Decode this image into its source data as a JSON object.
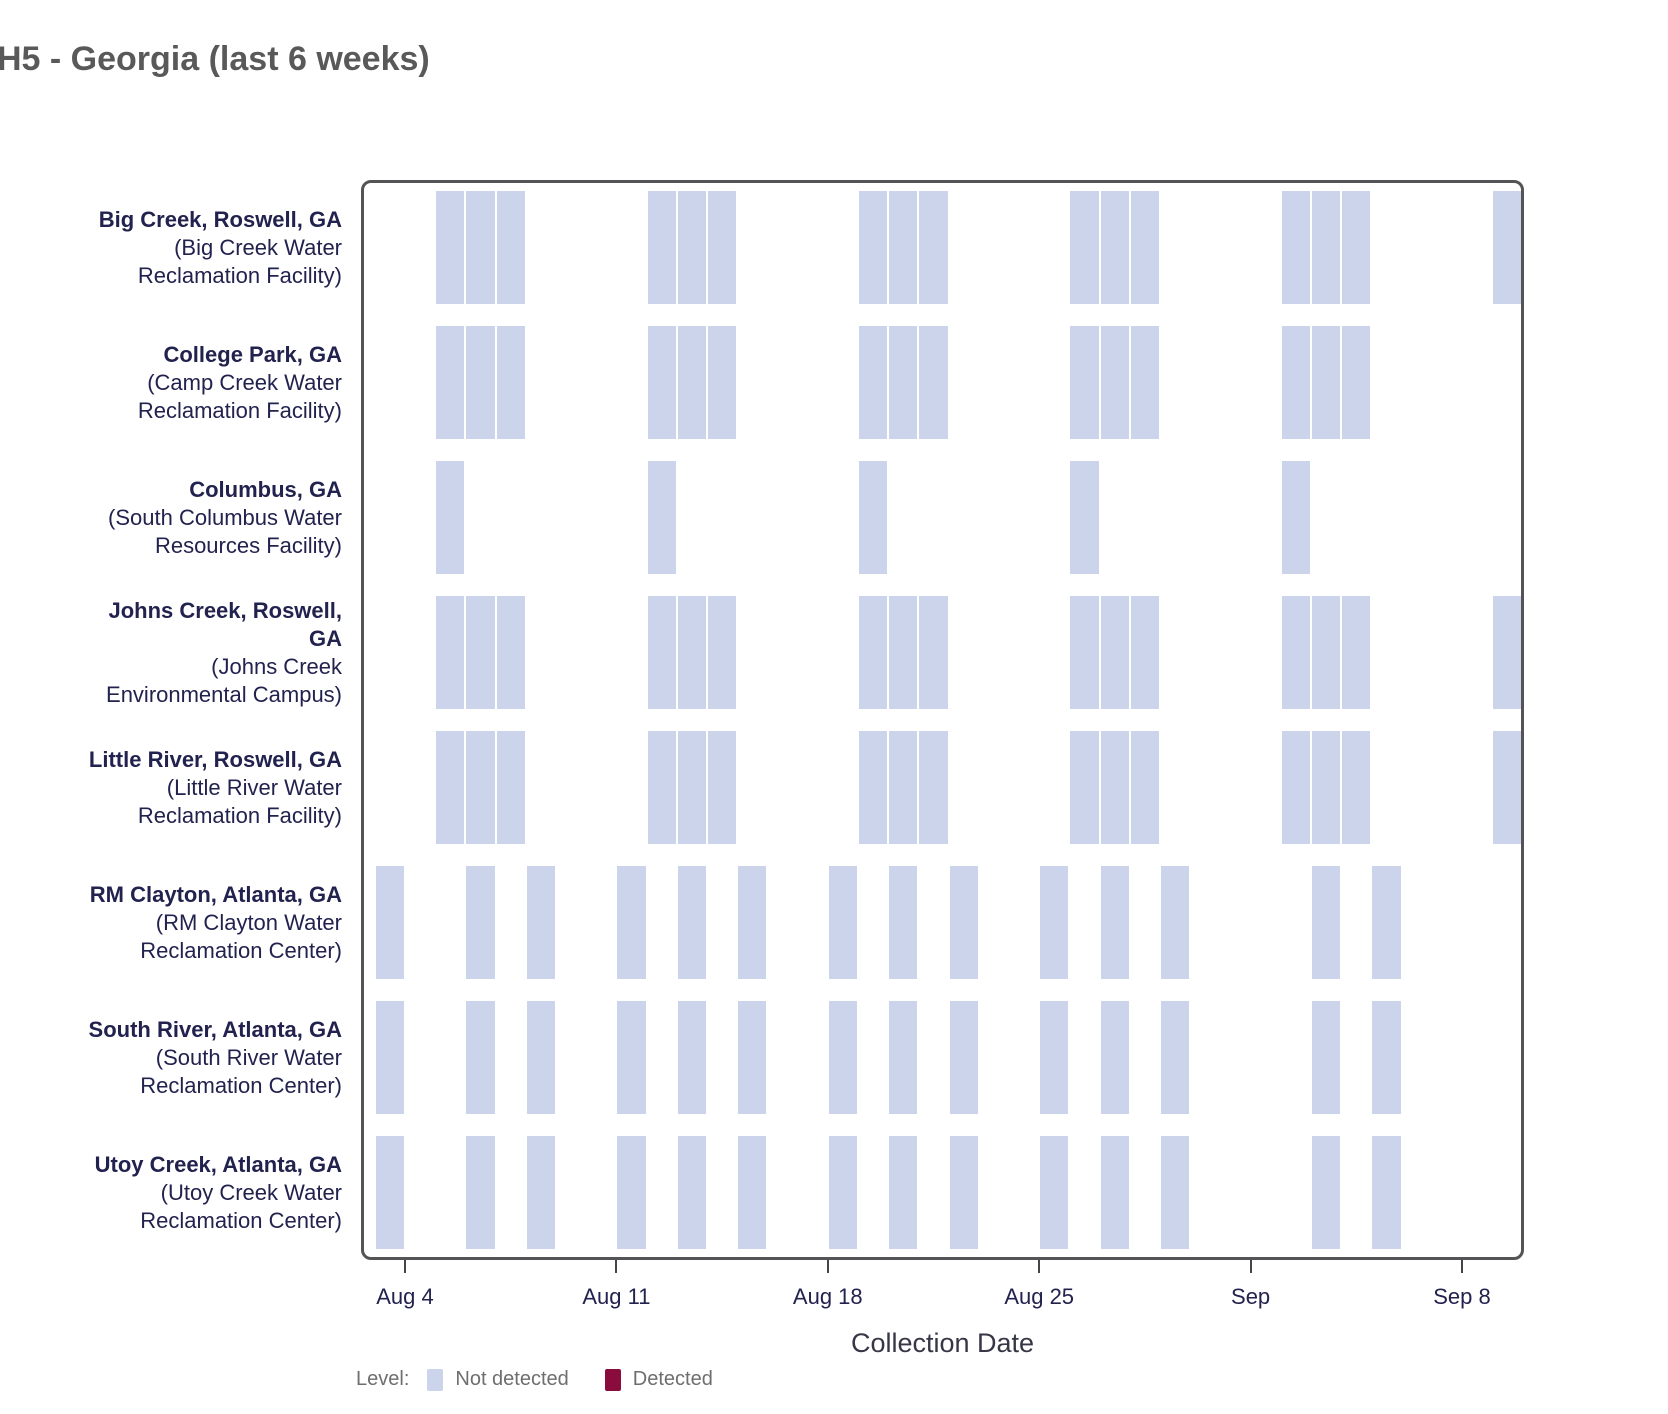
{
  "title": "H5 - Georgia (last 6 weeks)",
  "x_axis": {
    "title": "Collection Date",
    "ticks": [
      {
        "label": "Aug 4",
        "day": 3
      },
      {
        "label": "Aug 11",
        "day": 10
      },
      {
        "label": "Aug 18",
        "day": 17
      },
      {
        "label": "Aug 25",
        "day": 24
      },
      {
        "label": "Sep",
        "day": 31
      },
      {
        "label": "Sep 8",
        "day": 38
      }
    ],
    "range_note": "axis spans approx Aug 2 to Sep 10; day offsets counted from Aug 1 = 0"
  },
  "legend": {
    "label": "Level:",
    "items": [
      {
        "label": "Not detected",
        "color": "#ccd4ec"
      },
      {
        "label": "Detected",
        "color": "#8a0c3c"
      }
    ]
  },
  "chart_data": {
    "type": "heatmap",
    "title": "H5 - Georgia (last 6 weeks)",
    "xlabel": "Collection Date",
    "x_unit": "collection date (day offset from Aug 1)",
    "levels": [
      "Not detected",
      "Detected"
    ],
    "grid": false,
    "legend_position": "bottom-left",
    "rows": [
      {
        "site": "Big Creek, Roswell, GA",
        "facility": "(Big Creek Water\nReclamation Facility)",
        "level": "Not detected",
        "dates": [
          {
            "label": "Aug 5",
            "day": 4
          },
          {
            "label": "Aug 6",
            "day": 5
          },
          {
            "label": "Aug 7",
            "day": 6
          },
          {
            "label": "Aug 12",
            "day": 11
          },
          {
            "label": "Aug 13",
            "day": 12
          },
          {
            "label": "Aug 14",
            "day": 13
          },
          {
            "label": "Aug 19",
            "day": 18
          },
          {
            "label": "Aug 20",
            "day": 19
          },
          {
            "label": "Aug 21",
            "day": 20
          },
          {
            "label": "Aug 26",
            "day": 25
          },
          {
            "label": "Aug 27",
            "day": 26
          },
          {
            "label": "Aug 28",
            "day": 27
          },
          {
            "label": "Sep 2",
            "day": 32
          },
          {
            "label": "Sep 3",
            "day": 33
          },
          {
            "label": "Sep 4",
            "day": 34
          },
          {
            "label": "Sep 9",
            "day": 39
          }
        ]
      },
      {
        "site": "College Park, GA",
        "facility": "(Camp Creek Water\nReclamation Facility)",
        "level": "Not detected",
        "dates": [
          {
            "label": "Aug 5",
            "day": 4
          },
          {
            "label": "Aug 6",
            "day": 5
          },
          {
            "label": "Aug 7",
            "day": 6
          },
          {
            "label": "Aug 12",
            "day": 11
          },
          {
            "label": "Aug 13",
            "day": 12
          },
          {
            "label": "Aug 14",
            "day": 13
          },
          {
            "label": "Aug 19",
            "day": 18
          },
          {
            "label": "Aug 20",
            "day": 19
          },
          {
            "label": "Aug 21",
            "day": 20
          },
          {
            "label": "Aug 26",
            "day": 25
          },
          {
            "label": "Aug 27",
            "day": 26
          },
          {
            "label": "Aug 28",
            "day": 27
          },
          {
            "label": "Sep 2",
            "day": 32
          },
          {
            "label": "Sep 3",
            "day": 33
          },
          {
            "label": "Sep 4",
            "day": 34
          }
        ]
      },
      {
        "site": "Columbus, GA",
        "facility": "(South Columbus Water\nResources Facility)",
        "level": "Not detected",
        "dates": [
          {
            "label": "Aug 5",
            "day": 4
          },
          {
            "label": "Aug 12",
            "day": 11
          },
          {
            "label": "Aug 19",
            "day": 18
          },
          {
            "label": "Aug 26",
            "day": 25
          },
          {
            "label": "Sep 2",
            "day": 32
          }
        ]
      },
      {
        "site": "Johns Creek, Roswell,\nGA",
        "facility": "(Johns Creek\nEnvironmental Campus)",
        "level": "Not detected",
        "dates": [
          {
            "label": "Aug 5",
            "day": 4
          },
          {
            "label": "Aug 6",
            "day": 5
          },
          {
            "label": "Aug 7",
            "day": 6
          },
          {
            "label": "Aug 12",
            "day": 11
          },
          {
            "label": "Aug 13",
            "day": 12
          },
          {
            "label": "Aug 14",
            "day": 13
          },
          {
            "label": "Aug 19",
            "day": 18
          },
          {
            "label": "Aug 20",
            "day": 19
          },
          {
            "label": "Aug 21",
            "day": 20
          },
          {
            "label": "Aug 26",
            "day": 25
          },
          {
            "label": "Aug 27",
            "day": 26
          },
          {
            "label": "Aug 28",
            "day": 27
          },
          {
            "label": "Sep 2",
            "day": 32
          },
          {
            "label": "Sep 3",
            "day": 33
          },
          {
            "label": "Sep 4",
            "day": 34
          },
          {
            "label": "Sep 9",
            "day": 39
          }
        ]
      },
      {
        "site": "Little River, Roswell, GA",
        "facility": "(Little River Water\nReclamation Facility)",
        "level": "Not detected",
        "dates": [
          {
            "label": "Aug 5",
            "day": 4
          },
          {
            "label": "Aug 6",
            "day": 5
          },
          {
            "label": "Aug 7",
            "day": 6
          },
          {
            "label": "Aug 12",
            "day": 11
          },
          {
            "label": "Aug 13",
            "day": 12
          },
          {
            "label": "Aug 14",
            "day": 13
          },
          {
            "label": "Aug 19",
            "day": 18
          },
          {
            "label": "Aug 20",
            "day": 19
          },
          {
            "label": "Aug 21",
            "day": 20
          },
          {
            "label": "Aug 26",
            "day": 25
          },
          {
            "label": "Aug 27",
            "day": 26
          },
          {
            "label": "Aug 28",
            "day": 27
          },
          {
            "label": "Sep 2",
            "day": 32
          },
          {
            "label": "Sep 3",
            "day": 33
          },
          {
            "label": "Sep 4",
            "day": 34
          },
          {
            "label": "Sep 9",
            "day": 39
          }
        ]
      },
      {
        "site": "RM Clayton, Atlanta, GA",
        "facility": "(RM Clayton Water\nReclamation Center)",
        "level": "Not detected",
        "dates": [
          {
            "label": "Aug 3",
            "day": 2
          },
          {
            "label": "Aug 6",
            "day": 5
          },
          {
            "label": "Aug 8",
            "day": 7
          },
          {
            "label": "Aug 11",
            "day": 10
          },
          {
            "label": "Aug 13",
            "day": 12
          },
          {
            "label": "Aug 15",
            "day": 14
          },
          {
            "label": "Aug 18",
            "day": 17
          },
          {
            "label": "Aug 20",
            "day": 19
          },
          {
            "label": "Aug 22",
            "day": 21
          },
          {
            "label": "Aug 25",
            "day": 24
          },
          {
            "label": "Aug 27",
            "day": 26
          },
          {
            "label": "Aug 29",
            "day": 28
          },
          {
            "label": "Sep 3",
            "day": 33
          },
          {
            "label": "Sep 5",
            "day": 35
          }
        ]
      },
      {
        "site": "South River, Atlanta, GA",
        "facility": "(South River Water\nReclamation Center)",
        "level": "Not detected",
        "dates": [
          {
            "label": "Aug 3",
            "day": 2
          },
          {
            "label": "Aug 6",
            "day": 5
          },
          {
            "label": "Aug 8",
            "day": 7
          },
          {
            "label": "Aug 11",
            "day": 10
          },
          {
            "label": "Aug 13",
            "day": 12
          },
          {
            "label": "Aug 15",
            "day": 14
          },
          {
            "label": "Aug 18",
            "day": 17
          },
          {
            "label": "Aug 20",
            "day": 19
          },
          {
            "label": "Aug 22",
            "day": 21
          },
          {
            "label": "Aug 25",
            "day": 24
          },
          {
            "label": "Aug 27",
            "day": 26
          },
          {
            "label": "Aug 29",
            "day": 28
          },
          {
            "label": "Sep 3",
            "day": 33
          },
          {
            "label": "Sep 5",
            "day": 35
          }
        ]
      },
      {
        "site": "Utoy Creek, Atlanta, GA",
        "facility": "(Utoy Creek Water\nReclamation Center)",
        "level": "Not detected",
        "dates": [
          {
            "label": "Aug 3",
            "day": 2
          },
          {
            "label": "Aug 6",
            "day": 5
          },
          {
            "label": "Aug 8",
            "day": 7
          },
          {
            "label": "Aug 11",
            "day": 10
          },
          {
            "label": "Aug 13",
            "day": 12
          },
          {
            "label": "Aug 15",
            "day": 14
          },
          {
            "label": "Aug 18",
            "day": 17
          },
          {
            "label": "Aug 20",
            "day": 19
          },
          {
            "label": "Aug 22",
            "day": 21
          },
          {
            "label": "Aug 25",
            "day": 24
          },
          {
            "label": "Aug 27",
            "day": 26
          },
          {
            "label": "Aug 29",
            "day": 28
          },
          {
            "label": "Sep 3",
            "day": 33
          },
          {
            "label": "Sep 5",
            "day": 35
          }
        ]
      }
    ]
  }
}
